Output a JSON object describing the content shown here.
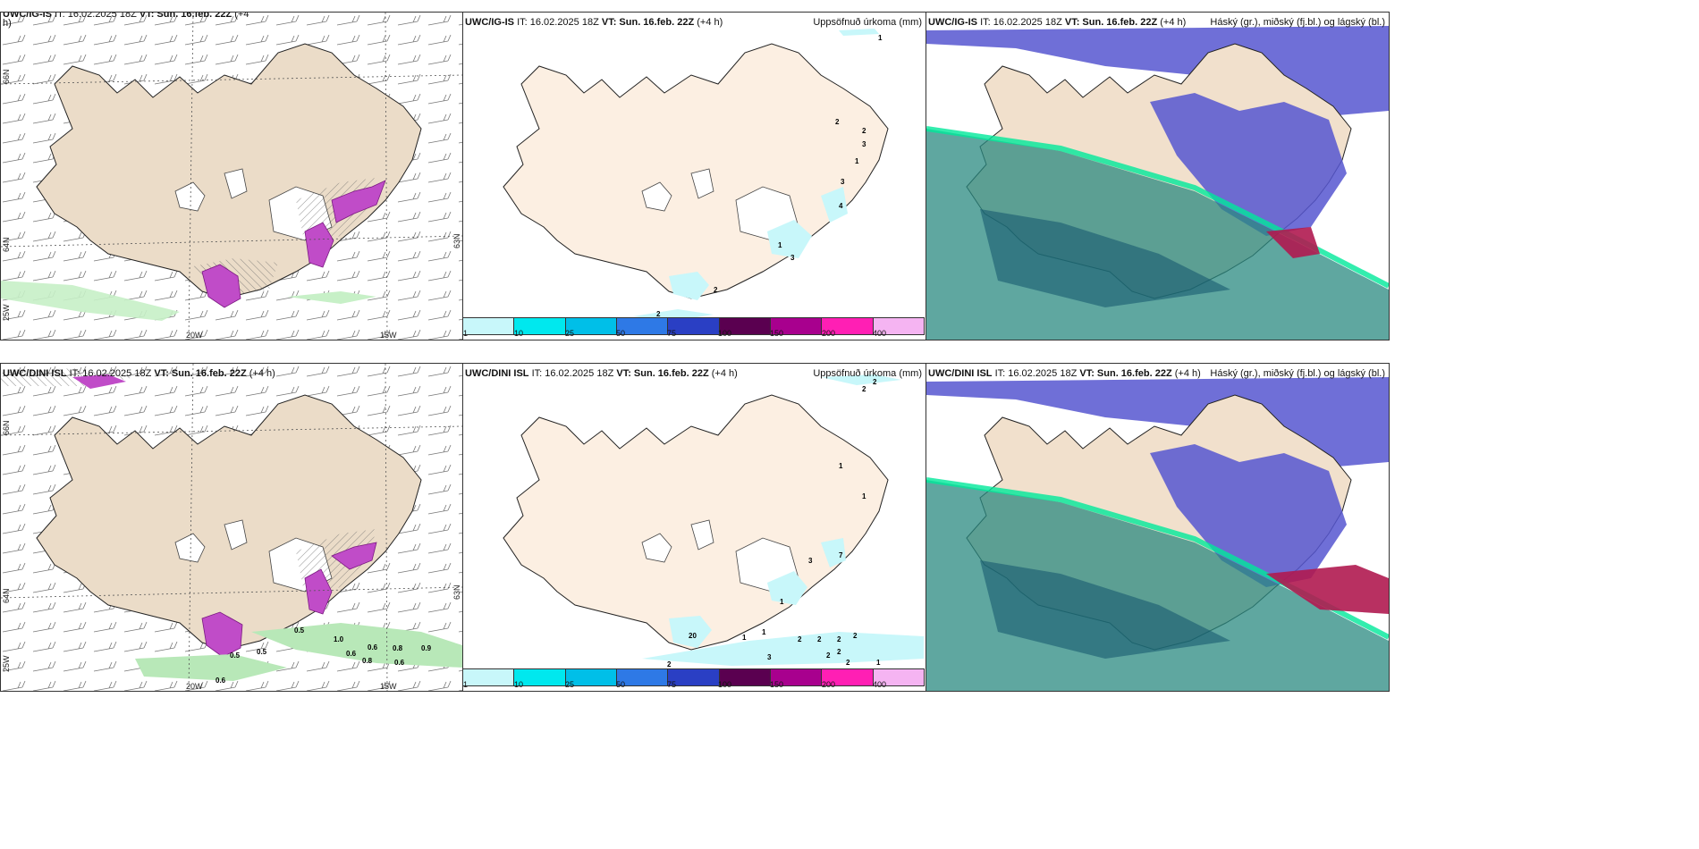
{
  "panels": {
    "top_left": {
      "title_model": "UWC/IG-IS",
      "title_rest": "IT: 16.02.2025 18Z",
      "title_vt": "VT: Sun. 16.feb. 22Z",
      "title_lead": "(+4",
      "title_wrap": "h)"
    },
    "top_mid": {
      "title_model": "UWC/IG-IS",
      "title_rest": "IT: 16.02.2025 18Z",
      "title_vt": "VT: Sun. 16.feb. 22Z",
      "title_lead": "(+4 h)",
      "right": "Uppsöfnuð úrkoma (mm)"
    },
    "top_right": {
      "title_model": "UWC/IG-IS",
      "title_rest": "IT: 16.02.2025 18Z",
      "title_vt": "VT: Sun. 16.feb. 22Z",
      "title_lead": "(+4 h)",
      "right": "Háský (gr.), miðský (fj.bl.) og lágský (bl.)"
    },
    "bot_left": {
      "title_model": "UWC/DINI ISL",
      "title_rest": "IT: 16.02.2025 18Z",
      "title_vt": "VT: Sun. 16.feb. 22Z",
      "title_lead": "(+4 h)"
    },
    "bot_mid": {
      "title_model": "UWC/DINI ISL",
      "title_rest": "IT: 16.02.2025 18Z",
      "title_vt": "VT: Sun. 16.feb. 22Z",
      "title_lead": "(+4 h)",
      "right": "Uppsöfnuð úrkoma (mm)"
    },
    "bot_right": {
      "title_model": "UWC/DINI ISL",
      "title_rest": "IT: 16.02.2025 18Z",
      "title_vt": "VT: Sun. 16.feb. 22Z",
      "title_lead": "(+4 h)",
      "right": "Háský (gr.), miðský (fj.bl.) og lágský (bl.)"
    }
  },
  "axes": {
    "lon_20w": "20W",
    "lon_15w": "15W",
    "lat_66n": "66N",
    "lat_64n": "64N",
    "lat_63n": "63N",
    "lon_25w": "25W"
  },
  "legend": {
    "ticks": [
      "1",
      "10",
      "25",
      "50",
      "75",
      "100",
      "150",
      "200",
      "400"
    ],
    "colors": [
      "#c8f7fa",
      "#00e8ee",
      "#00bfe8",
      "#2e79e6",
      "#2a3fc4",
      "#5a0050",
      "#a8008e",
      "#ff1fb4",
      "#f5b4f2"
    ]
  },
  "precip_labels_top": [
    "1",
    "2",
    "2",
    "3",
    "1",
    "3",
    "4",
    "1",
    "3",
    "2",
    "2"
  ],
  "precip_labels_bot": [
    "2",
    "2",
    "1",
    "1",
    "3",
    "7",
    "1",
    "1",
    "1",
    "20",
    "2",
    "2",
    "2",
    "2",
    "2",
    "3",
    "2",
    "2",
    "1",
    "2"
  ],
  "wind_labels_bot": [
    "0.5",
    "1.0",
    "0.6",
    "0.8",
    "0.9",
    "0.5",
    "0.6",
    "0.8",
    "0.6",
    "0.5",
    "0.6"
  ]
}
